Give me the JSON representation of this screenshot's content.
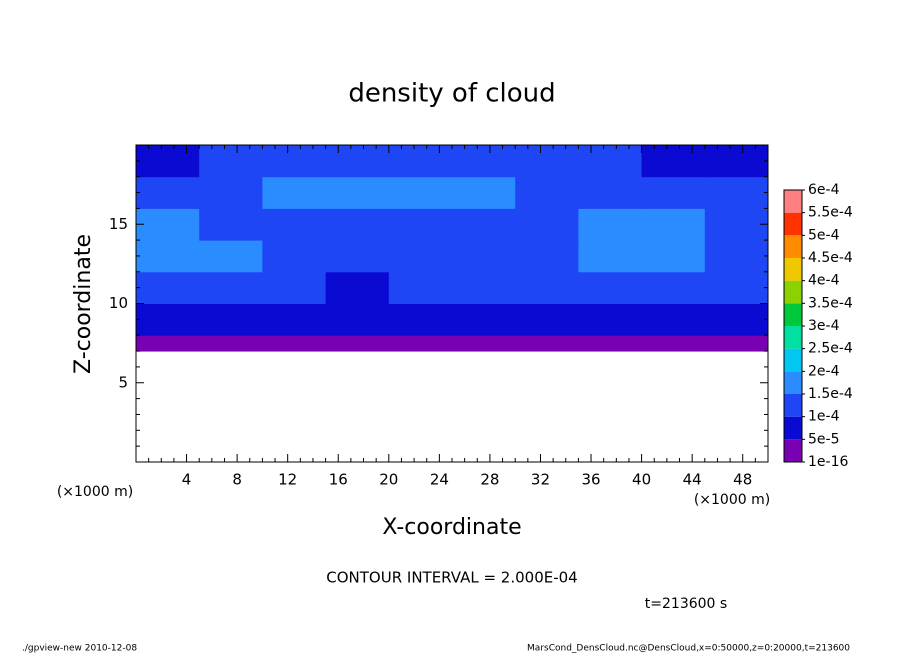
{
  "chart_data": {
    "type": "contour",
    "title": "density of cloud",
    "xlabel": "X-coordinate",
    "ylabel": "Z-coordinate",
    "y_scale_label": "(×1000 m)",
    "x_scale_label": "(×1000 m)",
    "interval_label": "CONTOUR INTERVAL = 2.000E-04",
    "time_label": "t=213600 s",
    "footer_left": "./gpview-new  2010-12-08",
    "footer_right": "MarsCond_DensCloud.nc@DensCloud,x=0:50000,z=0:20000,t=213600",
    "xlim": [
      0,
      50
    ],
    "ylim": [
      0,
      20
    ],
    "xticks": [
      4,
      8,
      12,
      16,
      20,
      24,
      28,
      32,
      36,
      40,
      44,
      48
    ],
    "yticks": [
      5,
      10,
      15
    ],
    "xminorticks": [
      1,
      2,
      3,
      5,
      6,
      7,
      9,
      10,
      11,
      13,
      14,
      15,
      17,
      18,
      19,
      21,
      22,
      23,
      25,
      26,
      27,
      29,
      30,
      31,
      33,
      34,
      35,
      37,
      38,
      39,
      41,
      42,
      43,
      45,
      46,
      47,
      49
    ],
    "yminorticks": [
      1,
      2,
      3,
      4,
      6,
      7,
      8,
      9,
      11,
      12,
      13,
      14,
      16,
      17,
      18,
      19
    ],
    "x_bins": [
      0,
      5,
      10,
      15,
      20,
      25,
      30,
      35,
      40,
      45,
      50
    ],
    "z_bins": [
      7,
      8,
      10,
      12,
      14,
      16,
      18,
      20
    ],
    "z": [
      [
        3e-05,
        3e-05,
        3e-05,
        3e-05,
        3e-05,
        3e-05,
        3e-05,
        3e-05,
        3e-05,
        3e-05
      ],
      [
        8e-05,
        8e-05,
        8e-05,
        8e-05,
        8e-05,
        8e-05,
        8e-05,
        8e-05,
        8e-05,
        8e-05
      ],
      [
        0.00012,
        0.00012,
        0.00012,
        9e-05,
        0.00011,
        0.00012,
        0.00012,
        0.00012,
        0.00012,
        0.00012
      ],
      [
        0.00016,
        0.00016,
        0.00013,
        0.00012,
        0.00012,
        0.00012,
        0.00013,
        0.00016,
        0.00016,
        0.00013
      ],
      [
        0.00016,
        0.00013,
        0.00012,
        0.00012,
        0.00012,
        0.00013,
        0.00013,
        0.00016,
        0.00016,
        0.00013
      ],
      [
        0.00012,
        0.00013,
        0.00016,
        0.00016,
        0.00016,
        0.00016,
        0.00013,
        0.00012,
        0.00013,
        0.00012
      ],
      [
        9e-05,
        0.00012,
        0.00013,
        0.00013,
        0.00012,
        0.00012,
        0.00012,
        0.00012,
        9e-05,
        9e-05
      ]
    ],
    "levels": [
      {
        "value": 1e-16,
        "label": "1e-16"
      },
      {
        "value": 5e-05,
        "label": "5e-5"
      },
      {
        "value": 0.0001,
        "label": "1e-4"
      },
      {
        "value": 0.00015,
        "label": "1.5e-4"
      },
      {
        "value": 0.0002,
        "label": "2e-4"
      },
      {
        "value": 0.00025,
        "label": "2.5e-4"
      },
      {
        "value": 0.0003,
        "label": "3e-4"
      },
      {
        "value": 0.00035,
        "label": "3.5e-4"
      },
      {
        "value": 0.0004,
        "label": "4e-4"
      },
      {
        "value": 0.00045,
        "label": "4.5e-4"
      },
      {
        "value": 0.0005,
        "label": "5e-4"
      },
      {
        "value": 0.00055,
        "label": "5.5e-4"
      },
      {
        "value": 0.0006,
        "label": "6e-4"
      }
    ],
    "level_colors": [
      "#7a00b4",
      "#0a0ad2",
      "#1e46f5",
      "#2a8cff",
      "#00c8f0",
      "#00e0a0",
      "#00c83c",
      "#8cd200",
      "#f0c800",
      "#ff8c00",
      "#ff3200",
      "#ff8080"
    ]
  }
}
